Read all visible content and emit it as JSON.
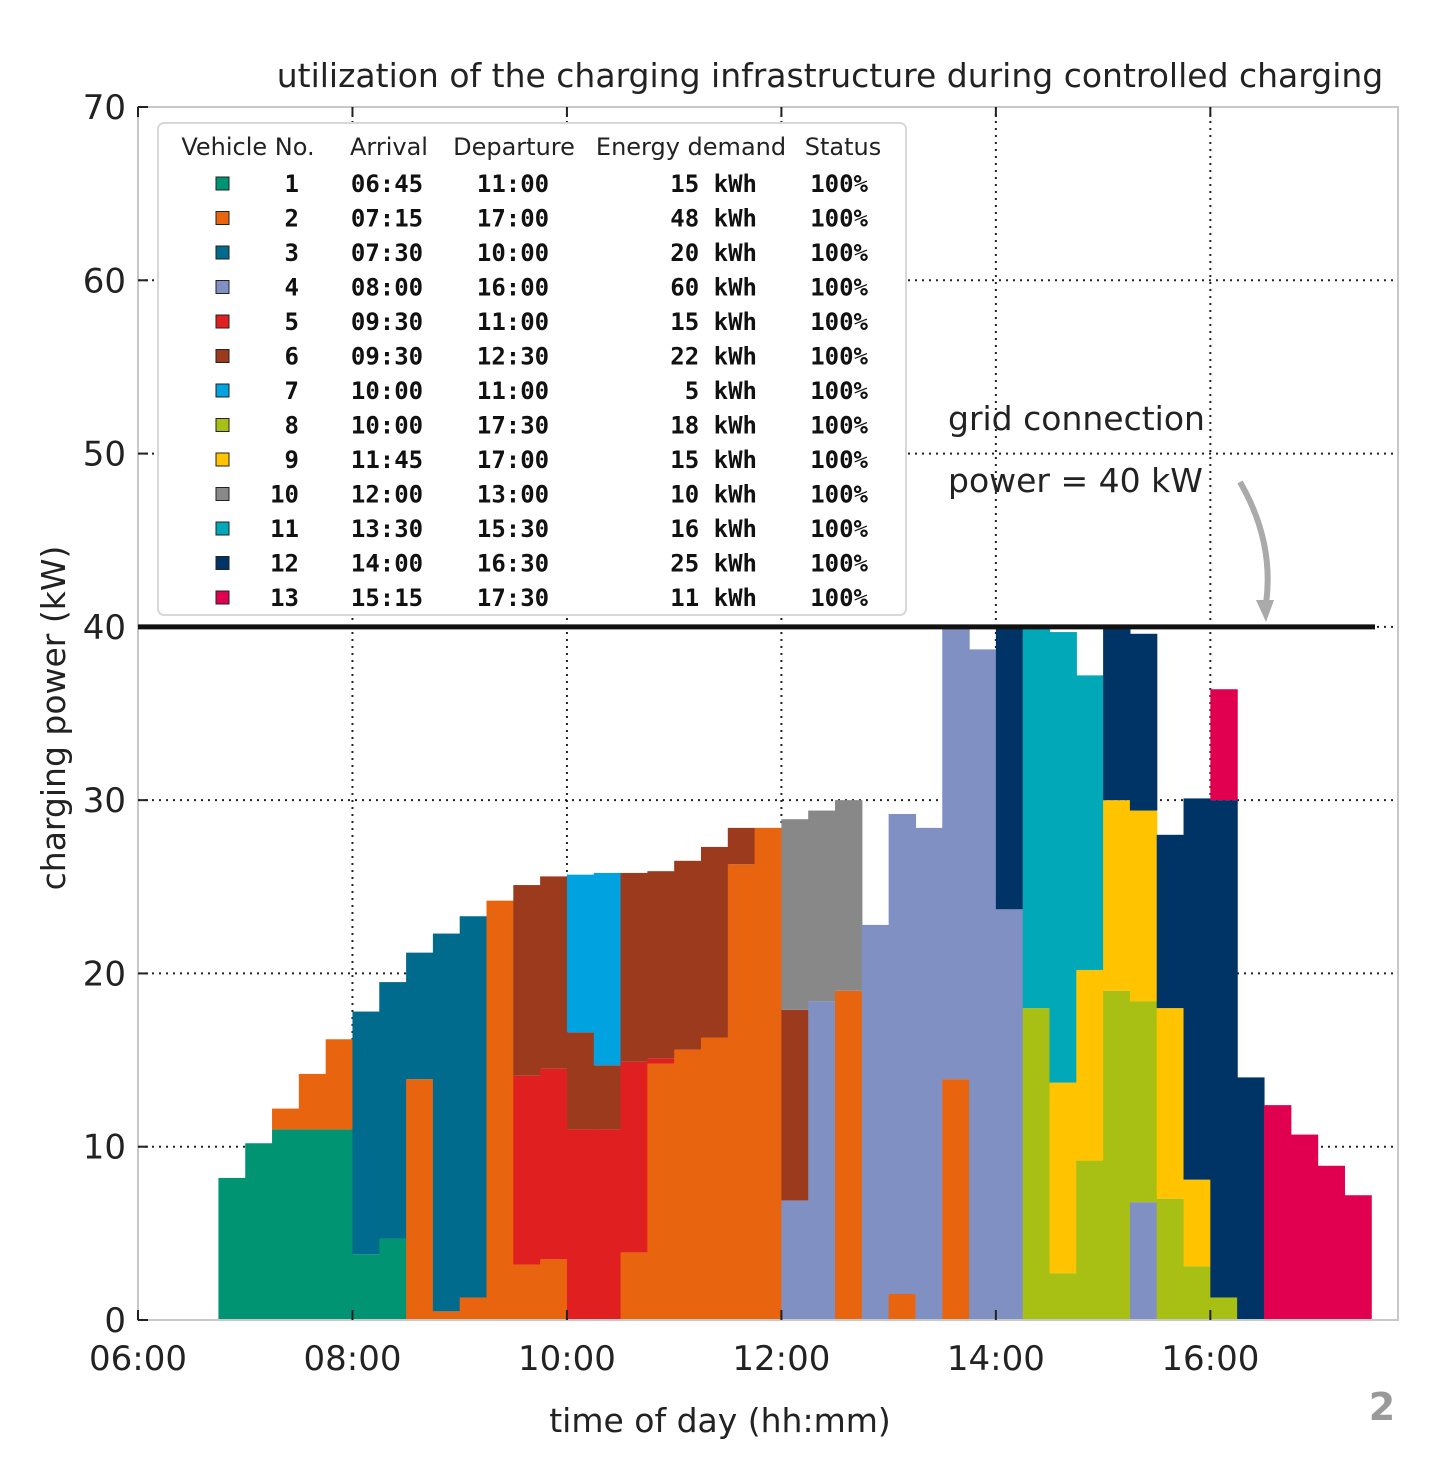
{
  "chart_data": {
    "type": "area",
    "subtype": "stacked-step",
    "title": "utilization of the charging infrastructure during controlled charging",
    "xlabel": "time of day (hh:mm)",
    "ylabel": "charging power (kW)",
    "xlim": [
      6.0,
      17.75
    ],
    "ylim": [
      0,
      70
    ],
    "x_ticks": [
      6,
      8,
      10,
      12,
      14,
      16
    ],
    "x_tick_labels": [
      "06:00",
      "08:00",
      "10:00",
      "12:00",
      "14:00",
      "16:00"
    ],
    "y_ticks": [
      0,
      10,
      20,
      30,
      40,
      50,
      60,
      70
    ],
    "y_tick_labels": [
      "0",
      "10",
      "20",
      "30",
      "40",
      "50",
      "60",
      "70"
    ],
    "x_grid": [
      8,
      10,
      12,
      14,
      16
    ],
    "y_grid": [
      10,
      20,
      30,
      40,
      50,
      60
    ],
    "grid": "dotted",
    "interval_hours": 0.25,
    "interval_starts": [
      6.75,
      7.0,
      7.25,
      7.5,
      7.75,
      8.0,
      8.25,
      8.5,
      8.75,
      9.0,
      9.25,
      9.5,
      9.75,
      10.0,
      10.25,
      10.5,
      10.75,
      11.0,
      11.25,
      11.5,
      11.75,
      12.0,
      12.25,
      12.5,
      12.75,
      13.0,
      13.25,
      13.5,
      13.75,
      14.0,
      14.25,
      14.5,
      14.75,
      15.0,
      15.25,
      15.5,
      15.75,
      16.0,
      16.25,
      16.5,
      16.75,
      17.0,
      17.25
    ],
    "series": [
      {
        "name": "1",
        "color": "#009473",
        "values": [
          8.2,
          10.2,
          11,
          11,
          11,
          3.8,
          4.7,
          0,
          0,
          0,
          0,
          0,
          0,
          0,
          0,
          0,
          0,
          0,
          0,
          0,
          0,
          0,
          0,
          0,
          0,
          0,
          0,
          0,
          0,
          0,
          0,
          0,
          0,
          0,
          0,
          0,
          0,
          0,
          0,
          0,
          0,
          0,
          0
        ]
      },
      {
        "name": "2",
        "color": "#e8640f",
        "values": [
          0,
          0,
          1.2,
          3.2,
          5.2,
          0,
          0,
          13.9,
          0.5,
          1.3,
          24.2,
          3.2,
          3.5,
          0,
          0,
          3.9,
          14.8,
          15.6,
          16.3,
          26.3,
          28.4,
          0,
          0,
          19.0,
          0,
          1.5,
          0,
          13.9,
          0,
          0,
          0,
          0,
          0,
          0,
          0,
          0,
          0,
          0,
          0,
          0,
          0,
          0,
          0
        ]
      },
      {
        "name": "3",
        "color": "#006b8c",
        "values": [
          0,
          0,
          0,
          0,
          0,
          14,
          14.8,
          7.3,
          21.8,
          22.0,
          0,
          0,
          0,
          0,
          0,
          0,
          0,
          0,
          0,
          0,
          0,
          0,
          0,
          0,
          0,
          0,
          0,
          0,
          0,
          0,
          0,
          0,
          0,
          0,
          0,
          0,
          0,
          0,
          0,
          0,
          0,
          0,
          0
        ]
      },
      {
        "name": "4",
        "color": "#8090c2",
        "values": [
          0,
          0,
          0,
          0,
          0,
          0,
          0,
          0,
          0,
          0,
          0,
          0,
          0,
          0,
          0,
          0,
          0,
          0,
          0,
          0,
          0,
          6.9,
          18.4,
          0,
          22.8,
          27.7,
          28.4,
          26.2,
          38.7,
          23.7,
          0,
          0,
          0,
          0,
          6.8,
          0,
          0,
          0,
          0,
          0,
          0,
          0,
          0
        ]
      },
      {
        "name": "5",
        "color": "#e02020",
        "values": [
          0,
          0,
          0,
          0,
          0,
          0,
          0,
          0,
          0,
          0,
          0,
          10.9,
          11.0,
          11.0,
          11.0,
          11.0,
          0.3,
          0,
          0,
          0,
          0,
          0,
          0,
          0,
          0,
          0,
          0,
          0,
          0,
          0,
          0,
          0,
          0,
          0,
          0,
          0,
          0,
          0,
          0,
          0,
          0,
          0,
          0
        ]
      },
      {
        "name": "6",
        "color": "#9b3a1c",
        "values": [
          0,
          0,
          0,
          0,
          0,
          0,
          0,
          0,
          0,
          0,
          0,
          11.0,
          11.1,
          5.6,
          3.7,
          10.9,
          10.8,
          10.9,
          11.0,
          2.1,
          0,
          11.0,
          0,
          0,
          0,
          0,
          0,
          0,
          0,
          0,
          0,
          0,
          0,
          0,
          0,
          0,
          0,
          0,
          0,
          0,
          0,
          0,
          0
        ]
      },
      {
        "name": "7",
        "color": "#00a2e0",
        "values": [
          0,
          0,
          0,
          0,
          0,
          0,
          0,
          0,
          0,
          0,
          0,
          0,
          0,
          9.1,
          11.1,
          0,
          0,
          0,
          0,
          0,
          0,
          0,
          0,
          0,
          0,
          0,
          0,
          0,
          0,
          0,
          0,
          0,
          0,
          0,
          0,
          0,
          0,
          0,
          0,
          0,
          0,
          0,
          0
        ]
      },
      {
        "name": "8",
        "color": "#a8bf14",
        "values": [
          0,
          0,
          0,
          0,
          0,
          0,
          0,
          0,
          0,
          0,
          0,
          0,
          0,
          0,
          0,
          0,
          0,
          0,
          0,
          0,
          0,
          0,
          0,
          0,
          0,
          0,
          0,
          0,
          0,
          0,
          18.0,
          2.7,
          9.2,
          19.0,
          11.6,
          7.0,
          3.1,
          1.3,
          0,
          0,
          0,
          0,
          0
        ]
      },
      {
        "name": "9",
        "color": "#ffc300",
        "values": [
          0,
          0,
          0,
          0,
          0,
          0,
          0,
          0,
          0,
          0,
          0,
          0,
          0,
          0,
          0,
          0,
          0,
          0,
          0,
          0,
          0,
          0,
          0,
          0,
          0,
          0,
          0,
          0,
          0,
          0,
          0,
          11.0,
          11.0,
          11.0,
          11.0,
          11.0,
          5.0,
          0,
          0,
          0,
          0,
          0,
          0
        ]
      },
      {
        "name": "10",
        "color": "#888888",
        "values": [
          0,
          0,
          0,
          0,
          0,
          0,
          0,
          0,
          0,
          0,
          0,
          0,
          0,
          0,
          0,
          0,
          0,
          0,
          0,
          0,
          0,
          11.0,
          11.0,
          11.0,
          0,
          0,
          0,
          0,
          0,
          0,
          0,
          0,
          0,
          0,
          0,
          0,
          0,
          0,
          0,
          0,
          0,
          0,
          0,
          0
        ]
      },
      {
        "name": "11",
        "color": "#00a8b8",
        "values": [
          0,
          0,
          0,
          0,
          0,
          0,
          0,
          0,
          0,
          0,
          0,
          0,
          0,
          0,
          0,
          0,
          0,
          0,
          0,
          0,
          0,
          0,
          0,
          0,
          0,
          0,
          0,
          0,
          0,
          0,
          22.0,
          26.0,
          17.0,
          0,
          0,
          0,
          0,
          0,
          0,
          0,
          0,
          0,
          0
        ]
      },
      {
        "name": "12",
        "color": "#003466",
        "values": [
          0,
          0,
          0,
          0,
          0,
          0,
          0,
          0,
          0,
          0,
          0,
          0,
          0,
          0,
          0,
          0,
          0,
          0,
          0,
          0,
          0,
          0,
          0,
          0,
          0,
          0,
          0,
          0,
          0,
          16.3,
          0,
          0,
          0,
          10.0,
          10.2,
          10.0,
          22.0,
          28.7,
          14.0,
          0,
          0,
          0,
          0
        ]
      },
      {
        "name": "13",
        "color": "#e0004f",
        "values": [
          0,
          0,
          0,
          0,
          0,
          0,
          0,
          0,
          0,
          0,
          0,
          0,
          0,
          0,
          0,
          0,
          0,
          0,
          0,
          0,
          0,
          0,
          0,
          0,
          0,
          0,
          0,
          0,
          0,
          0,
          0,
          0,
          0,
          0,
          0,
          0,
          0,
          6.4,
          0,
          12.4,
          10.7,
          8.9,
          7.2
        ]
      }
    ],
    "grid_limit": {
      "value": 40,
      "annotation": "grid connection\npower = 40 kW"
    },
    "legend": {
      "placement": "top-left",
      "headers": [
        "Vehicle No.",
        "Arrival",
        "Departure",
        "Energy demand",
        "Status"
      ],
      "rows": [
        {
          "no": "1",
          "arrival": "06:45",
          "departure": "11:00",
          "energy": "15 kWh",
          "status": "100%"
        },
        {
          "no": "2",
          "arrival": "07:15",
          "departure": "17:00",
          "energy": "48 kWh",
          "status": "100%"
        },
        {
          "no": "3",
          "arrival": "07:30",
          "departure": "10:00",
          "energy": "20 kWh",
          "status": "100%"
        },
        {
          "no": "4",
          "arrival": "08:00",
          "departure": "16:00",
          "energy": "60 kWh",
          "status": "100%"
        },
        {
          "no": "5",
          "arrival": "09:30",
          "departure": "11:00",
          "energy": "15 kWh",
          "status": "100%"
        },
        {
          "no": "6",
          "arrival": "09:30",
          "departure": "12:30",
          "energy": "22 kWh",
          "status": "100%"
        },
        {
          "no": "7",
          "arrival": "10:00",
          "departure": "11:00",
          "energy": "5 kWh",
          "status": "100%"
        },
        {
          "no": "8",
          "arrival": "10:00",
          "departure": "17:30",
          "energy": "18 kWh",
          "status": "100%"
        },
        {
          "no": "9",
          "arrival": "11:45",
          "departure": "17:00",
          "energy": "15 kWh",
          "status": "100%"
        },
        {
          "no": "10",
          "arrival": "12:00",
          "departure": "13:00",
          "energy": "10 kWh",
          "status": "100%"
        },
        {
          "no": "11",
          "arrival": "13:30",
          "departure": "15:30",
          "energy": "16 kWh",
          "status": "100%"
        },
        {
          "no": "12",
          "arrival": "14:00",
          "departure": "16:30",
          "energy": "25 kWh",
          "status": "100%"
        },
        {
          "no": "13",
          "arrival": "15:15",
          "departure": "17:30",
          "energy": "11 kWh",
          "status": "100%"
        }
      ]
    }
  },
  "page_number": "2",
  "colors": {
    "axis": "#c8c8c8",
    "limit_line": "#111111",
    "arrow": "#aaaaaa",
    "page_number": "#999999"
  }
}
